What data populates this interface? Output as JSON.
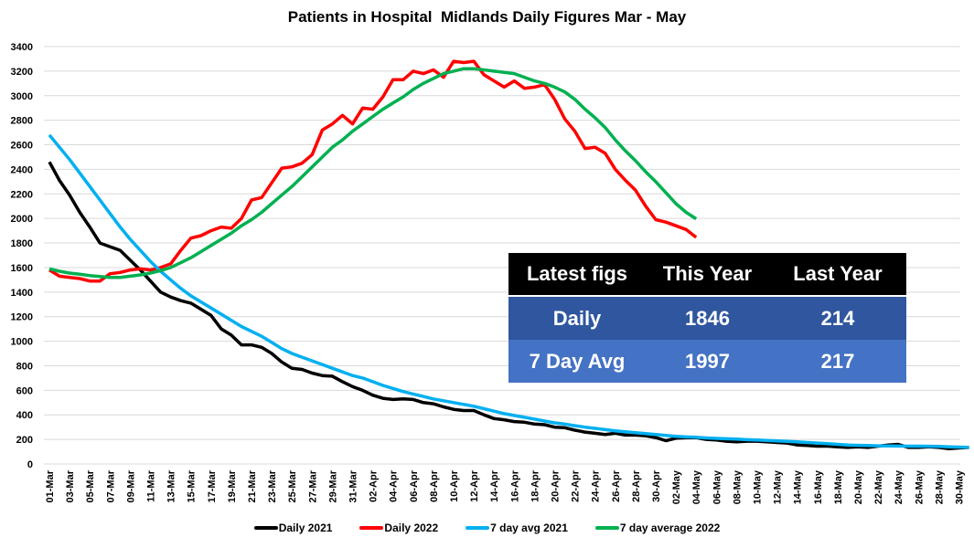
{
  "chart_data": {
    "type": "line",
    "title": "Patients in Hospital  Midlands Daily Figures Mar - May",
    "xlabel": "",
    "ylabel": "",
    "ylim": [
      0,
      3400
    ],
    "y_ticks": [
      0,
      200,
      400,
      600,
      800,
      1000,
      1200,
      1400,
      1600,
      1800,
      2000,
      2200,
      2400,
      2600,
      2800,
      3000,
      3200,
      3400
    ],
    "x_tick_labels": [
      "01-Mar",
      "03-Mar",
      "05-Mar",
      "07-Mar",
      "09-Mar",
      "11-Mar",
      "13-Mar",
      "15-Mar",
      "17-Mar",
      "19-Mar",
      "21-Mar",
      "23-Mar",
      "25-Mar",
      "27-Mar",
      "29-Mar",
      "31-Mar",
      "02-Apr",
      "04-Apr",
      "06-Apr",
      "08-Apr",
      "10-Apr",
      "12-Apr",
      "14-Apr",
      "16-Apr",
      "18-Apr",
      "20-Apr",
      "22-Apr",
      "24-Apr",
      "26-Apr",
      "28-Apr",
      "30-Apr",
      "02-May",
      "04-May",
      "06-May",
      "08-May",
      "10-May",
      "12-May",
      "14-May",
      "16-May",
      "18-May",
      "20-May",
      "22-May",
      "24-May",
      "26-May",
      "28-May",
      "30-May"
    ],
    "x_range": [
      "01-Mar",
      "31-May"
    ],
    "grid": true,
    "legend_position": "bottom",
    "series": [
      {
        "name": "Daily 2021",
        "color": "#000000",
        "values": [
          2460,
          2310,
          2190,
          2050,
          1930,
          1800,
          1770,
          1740,
          1660,
          1580,
          1490,
          1400,
          1360,
          1330,
          1310,
          1260,
          1210,
          1100,
          1050,
          970,
          970,
          950,
          900,
          830,
          780,
          770,
          740,
          720,
          715,
          670,
          630,
          600,
          560,
          535,
          525,
          530,
          525,
          500,
          490,
          465,
          445,
          435,
          435,
          400,
          370,
          360,
          345,
          340,
          325,
          320,
          300,
          295,
          275,
          260,
          250,
          240,
          250,
          235,
          235,
          230,
          215,
          190,
          210,
          214,
          214,
          200,
          195,
          185,
          180,
          185,
          185,
          180,
          175,
          170,
          155,
          150,
          145,
          145,
          140,
          135,
          140,
          135,
          145,
          155,
          160,
          135,
          135,
          140,
          135,
          125,
          130,
          135
        ]
      },
      {
        "name": "Daily 2022",
        "color": "#ff0000",
        "values": [
          1580,
          1530,
          1520,
          1510,
          1490,
          1490,
          1550,
          1560,
          1580,
          1590,
          1580,
          1600,
          1630,
          1740,
          1840,
          1860,
          1900,
          1930,
          1920,
          2000,
          2150,
          2170,
          2290,
          2410,
          2420,
          2450,
          2520,
          2720,
          2770,
          2840,
          2770,
          2900,
          2890,
          2990,
          3130,
          3130,
          3200,
          3180,
          3210,
          3150,
          3280,
          3270,
          3280,
          3170,
          3120,
          3070,
          3120,
          3060,
          3070,
          3090,
          2970,
          2810,
          2710,
          2570,
          2580,
          2530,
          2400,
          2310,
          2230,
          2100,
          1990,
          1970,
          1940,
          1910,
          1846
        ]
      },
      {
        "name": "7 day avg 2021",
        "color": "#00b0f0",
        "values": [
          2680,
          2580,
          2480,
          2370,
          2260,
          2150,
          2040,
          1930,
          1830,
          1740,
          1650,
          1570,
          1500,
          1430,
          1370,
          1320,
          1270,
          1220,
          1170,
          1120,
          1080,
          1040,
          990,
          940,
          900,
          870,
          840,
          810,
          780,
          750,
          720,
          700,
          670,
          640,
          615,
          590,
          570,
          550,
          530,
          515,
          500,
          485,
          470,
          450,
          430,
          410,
          395,
          380,
          365,
          350,
          335,
          325,
          312,
          300,
          290,
          280,
          270,
          262,
          255,
          247,
          240,
          232,
          225,
          220,
          217,
          212,
          208,
          205,
          202,
          198,
          195,
          192,
          188,
          184,
          180,
          175,
          170,
          165,
          160,
          155,
          152,
          150,
          148,
          147,
          146,
          145,
          145,
          144,
          143,
          140,
          138,
          135
        ]
      },
      {
        "name": "7 day average 2022",
        "color": "#00b050",
        "values": [
          1590,
          1570,
          1555,
          1545,
          1535,
          1527,
          1520,
          1520,
          1530,
          1540,
          1555,
          1575,
          1600,
          1640,
          1680,
          1730,
          1780,
          1830,
          1880,
          1940,
          1990,
          2050,
          2120,
          2190,
          2260,
          2340,
          2420,
          2500,
          2580,
          2640,
          2710,
          2770,
          2830,
          2890,
          2940,
          2990,
          3050,
          3100,
          3140,
          3180,
          3200,
          3220,
          3220,
          3210,
          3200,
          3190,
          3180,
          3150,
          3120,
          3100,
          3070,
          3030,
          2970,
          2890,
          2820,
          2740,
          2640,
          2550,
          2470,
          2380,
          2300,
          2210,
          2120,
          2050,
          1997
        ]
      }
    ]
  },
  "summary_table": {
    "headers": [
      "Latest figs",
      "This Year",
      "Last Year"
    ],
    "rows": [
      {
        "label": "Daily",
        "this_year": "1846",
        "last_year": "214"
      },
      {
        "label": "7 Day Avg",
        "this_year": "1997",
        "last_year": "217"
      }
    ]
  }
}
